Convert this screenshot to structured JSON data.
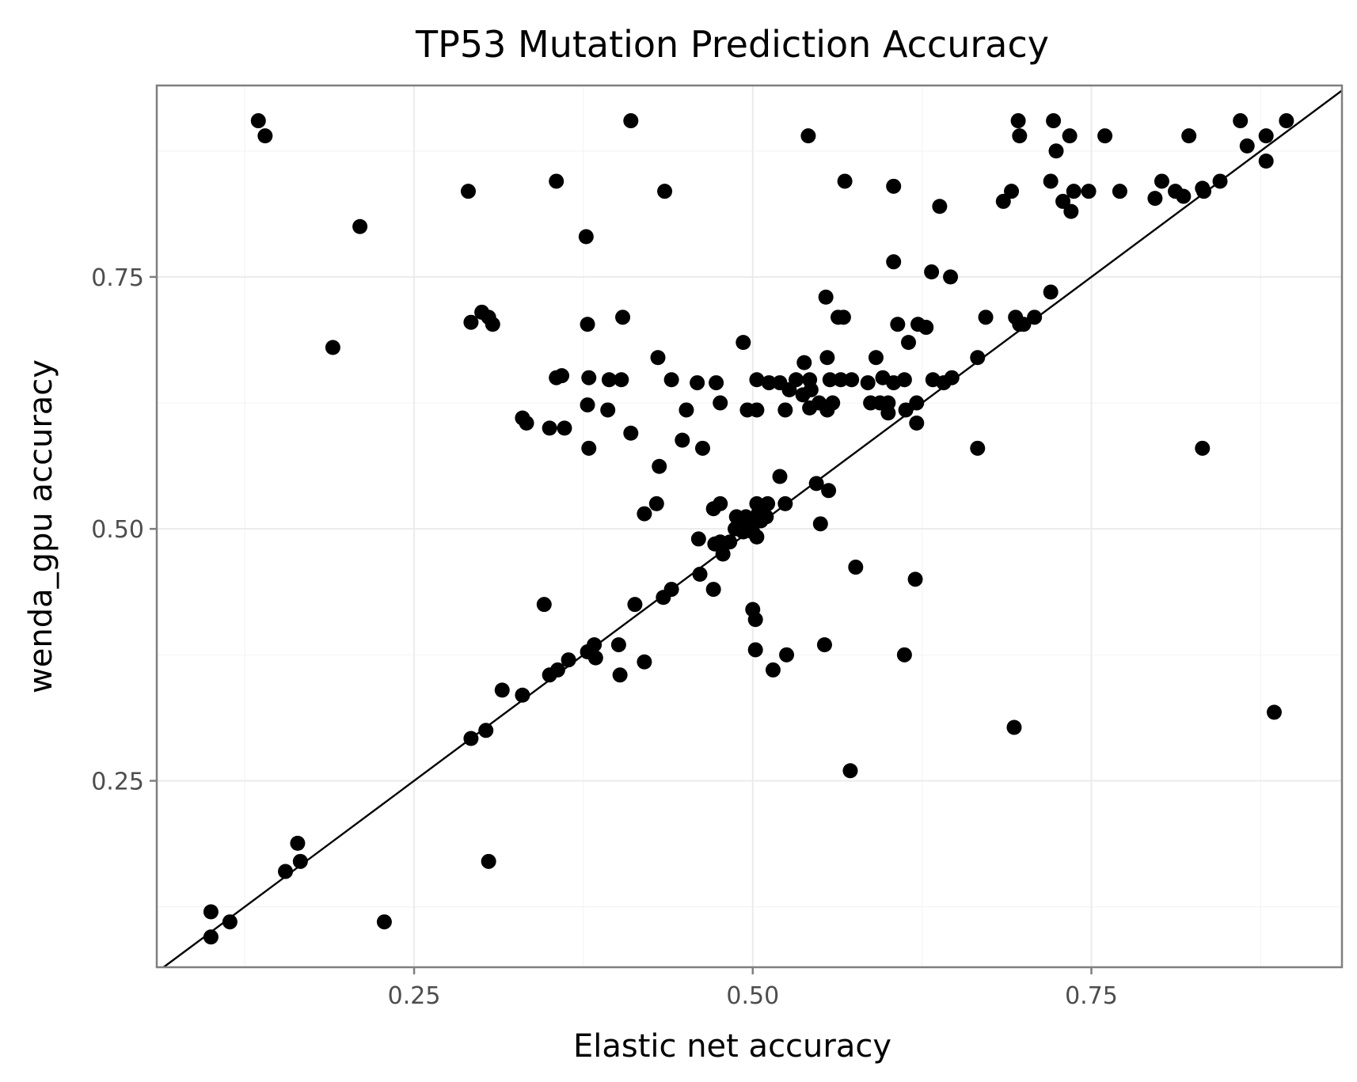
{
  "chart_data": {
    "type": "scatter",
    "title": "TP53 Mutation Prediction Accuracy",
    "xlabel": "Elastic net accuracy",
    "ylabel": "wenda_gpu accuracy",
    "xlim": [
      0.06,
      0.935
    ],
    "ylim": [
      0.065,
      0.94
    ],
    "x_ticks": [
      0.25,
      0.5,
      0.75
    ],
    "x_tick_labels": [
      "0.25",
      "0.50",
      "0.75"
    ],
    "y_ticks": [
      0.25,
      0.5,
      0.75
    ],
    "y_tick_labels": [
      "0.25",
      "0.50",
      "0.75"
    ],
    "x_minor": [
      0.125,
      0.375,
      0.625,
      0.875
    ],
    "y_minor": [
      0.125,
      0.375,
      0.625,
      0.875
    ],
    "grid": true,
    "reference_line": {
      "type": "identity",
      "intercept": 0,
      "slope": 1
    },
    "points": [
      [
        0.135,
        0.905
      ],
      [
        0.14,
        0.89
      ],
      [
        0.21,
        0.8
      ],
      [
        0.29,
        0.835
      ],
      [
        0.19,
        0.68
      ],
      [
        0.3,
        0.715
      ],
      [
        0.305,
        0.71
      ],
      [
        0.292,
        0.705
      ],
      [
        0.308,
        0.703
      ],
      [
        0.355,
        0.845
      ],
      [
        0.41,
        0.905
      ],
      [
        0.435,
        0.835
      ],
      [
        0.377,
        0.79
      ],
      [
        0.541,
        0.89
      ],
      [
        0.568,
        0.845
      ],
      [
        0.604,
        0.84
      ],
      [
        0.604,
        0.765
      ],
      [
        0.638,
        0.82
      ],
      [
        0.632,
        0.755
      ],
      [
        0.646,
        0.75
      ],
      [
        0.696,
        0.905
      ],
      [
        0.722,
        0.905
      ],
      [
        0.697,
        0.89
      ],
      [
        0.734,
        0.89
      ],
      [
        0.76,
        0.89
      ],
      [
        0.822,
        0.89
      ],
      [
        0.86,
        0.905
      ],
      [
        0.894,
        0.905
      ],
      [
        0.879,
        0.89
      ],
      [
        0.865,
        0.88
      ],
      [
        0.724,
        0.875
      ],
      [
        0.879,
        0.865
      ],
      [
        0.72,
        0.845
      ],
      [
        0.691,
        0.835
      ],
      [
        0.737,
        0.835
      ],
      [
        0.748,
        0.835
      ],
      [
        0.771,
        0.835
      ],
      [
        0.802,
        0.845
      ],
      [
        0.812,
        0.835
      ],
      [
        0.818,
        0.83
      ],
      [
        0.797,
        0.828
      ],
      [
        0.832,
        0.838
      ],
      [
        0.833,
        0.835
      ],
      [
        0.845,
        0.845
      ],
      [
        0.685,
        0.825
      ],
      [
        0.729,
        0.825
      ],
      [
        0.735,
        0.815
      ],
      [
        0.72,
        0.735
      ],
      [
        0.708,
        0.71
      ],
      [
        0.694,
        0.71
      ],
      [
        0.697,
        0.703
      ],
      [
        0.7,
        0.703
      ],
      [
        0.554,
        0.73
      ],
      [
        0.563,
        0.71
      ],
      [
        0.567,
        0.71
      ],
      [
        0.672,
        0.71
      ],
      [
        0.607,
        0.703
      ],
      [
        0.622,
        0.703
      ],
      [
        0.628,
        0.7
      ],
      [
        0.615,
        0.685
      ],
      [
        0.493,
        0.685
      ],
      [
        0.378,
        0.703
      ],
      [
        0.404,
        0.71
      ],
      [
        0.43,
        0.67
      ],
      [
        0.538,
        0.665
      ],
      [
        0.555,
        0.67
      ],
      [
        0.591,
        0.67
      ],
      [
        0.666,
        0.67
      ],
      [
        0.355,
        0.65
      ],
      [
        0.359,
        0.652
      ],
      [
        0.379,
        0.65
      ],
      [
        0.394,
        0.648
      ],
      [
        0.403,
        0.648
      ],
      [
        0.44,
        0.648
      ],
      [
        0.459,
        0.645
      ],
      [
        0.473,
        0.645
      ],
      [
        0.503,
        0.648
      ],
      [
        0.512,
        0.645
      ],
      [
        0.52,
        0.645
      ],
      [
        0.532,
        0.648
      ],
      [
        0.542,
        0.648
      ],
      [
        0.557,
        0.648
      ],
      [
        0.565,
        0.648
      ],
      [
        0.573,
        0.648
      ],
      [
        0.585,
        0.645
      ],
      [
        0.596,
        0.65
      ],
      [
        0.604,
        0.645
      ],
      [
        0.612,
        0.648
      ],
      [
        0.633,
        0.648
      ],
      [
        0.641,
        0.645
      ],
      [
        0.647,
        0.65
      ],
      [
        0.527,
        0.638
      ],
      [
        0.537,
        0.633
      ],
      [
        0.543,
        0.638
      ],
      [
        0.378,
        0.623
      ],
      [
        0.393,
        0.618
      ],
      [
        0.451,
        0.618
      ],
      [
        0.476,
        0.625
      ],
      [
        0.496,
        0.618
      ],
      [
        0.503,
        0.618
      ],
      [
        0.524,
        0.618
      ],
      [
        0.542,
        0.62
      ],
      [
        0.549,
        0.625
      ],
      [
        0.555,
        0.618
      ],
      [
        0.559,
        0.625
      ],
      [
        0.587,
        0.625
      ],
      [
        0.594,
        0.625
      ],
      [
        0.6,
        0.625
      ],
      [
        0.6,
        0.615
      ],
      [
        0.613,
        0.618
      ],
      [
        0.621,
        0.625
      ],
      [
        0.621,
        0.605
      ],
      [
        0.33,
        0.61
      ],
      [
        0.333,
        0.605
      ],
      [
        0.35,
        0.6
      ],
      [
        0.361,
        0.6
      ],
      [
        0.41,
        0.595
      ],
      [
        0.448,
        0.588
      ],
      [
        0.379,
        0.58
      ],
      [
        0.463,
        0.58
      ],
      [
        0.666,
        0.58
      ],
      [
        0.832,
        0.58
      ],
      [
        0.431,
        0.562
      ],
      [
        0.52,
        0.552
      ],
      [
        0.547,
        0.545
      ],
      [
        0.556,
        0.538
      ],
      [
        0.429,
        0.525
      ],
      [
        0.476,
        0.525
      ],
      [
        0.471,
        0.52
      ],
      [
        0.503,
        0.525
      ],
      [
        0.511,
        0.525
      ],
      [
        0.524,
        0.525
      ],
      [
        0.42,
        0.515
      ],
      [
        0.488,
        0.512
      ],
      [
        0.495,
        0.512
      ],
      [
        0.504,
        0.515
      ],
      [
        0.51,
        0.512
      ],
      [
        0.49,
        0.505
      ],
      [
        0.498,
        0.505
      ],
      [
        0.506,
        0.508
      ],
      [
        0.55,
        0.505
      ],
      [
        0.487,
        0.5
      ],
      [
        0.493,
        0.497
      ],
      [
        0.5,
        0.497
      ],
      [
        0.503,
        0.492
      ],
      [
        0.46,
        0.49
      ],
      [
        0.472,
        0.485
      ],
      [
        0.476,
        0.487
      ],
      [
        0.483,
        0.487
      ],
      [
        0.478,
        0.475
      ],
      [
        0.576,
        0.462
      ],
      [
        0.461,
        0.455
      ],
      [
        0.62,
        0.45
      ],
      [
        0.471,
        0.44
      ],
      [
        0.44,
        0.44
      ],
      [
        0.434,
        0.432
      ],
      [
        0.346,
        0.425
      ],
      [
        0.413,
        0.425
      ],
      [
        0.5,
        0.42
      ],
      [
        0.502,
        0.41
      ],
      [
        0.553,
        0.385
      ],
      [
        0.401,
        0.385
      ],
      [
        0.383,
        0.385
      ],
      [
        0.502,
        0.38
      ],
      [
        0.525,
        0.375
      ],
      [
        0.612,
        0.375
      ],
      [
        0.378,
        0.378
      ],
      [
        0.384,
        0.372
      ],
      [
        0.364,
        0.37
      ],
      [
        0.42,
        0.368
      ],
      [
        0.356,
        0.36
      ],
      [
        0.35,
        0.355
      ],
      [
        0.515,
        0.36
      ],
      [
        0.402,
        0.355
      ],
      [
        0.315,
        0.34
      ],
      [
        0.33,
        0.335
      ],
      [
        0.303,
        0.3
      ],
      [
        0.292,
        0.292
      ],
      [
        0.693,
        0.303
      ],
      [
        0.885,
        0.318
      ],
      [
        0.572,
        0.26
      ],
      [
        0.164,
        0.188
      ],
      [
        0.166,
        0.17
      ],
      [
        0.155,
        0.16
      ],
      [
        0.305,
        0.17
      ],
      [
        0.1,
        0.12
      ],
      [
        0.114,
        0.11
      ],
      [
        0.228,
        0.11
      ],
      [
        0.1,
        0.095
      ]
    ]
  }
}
